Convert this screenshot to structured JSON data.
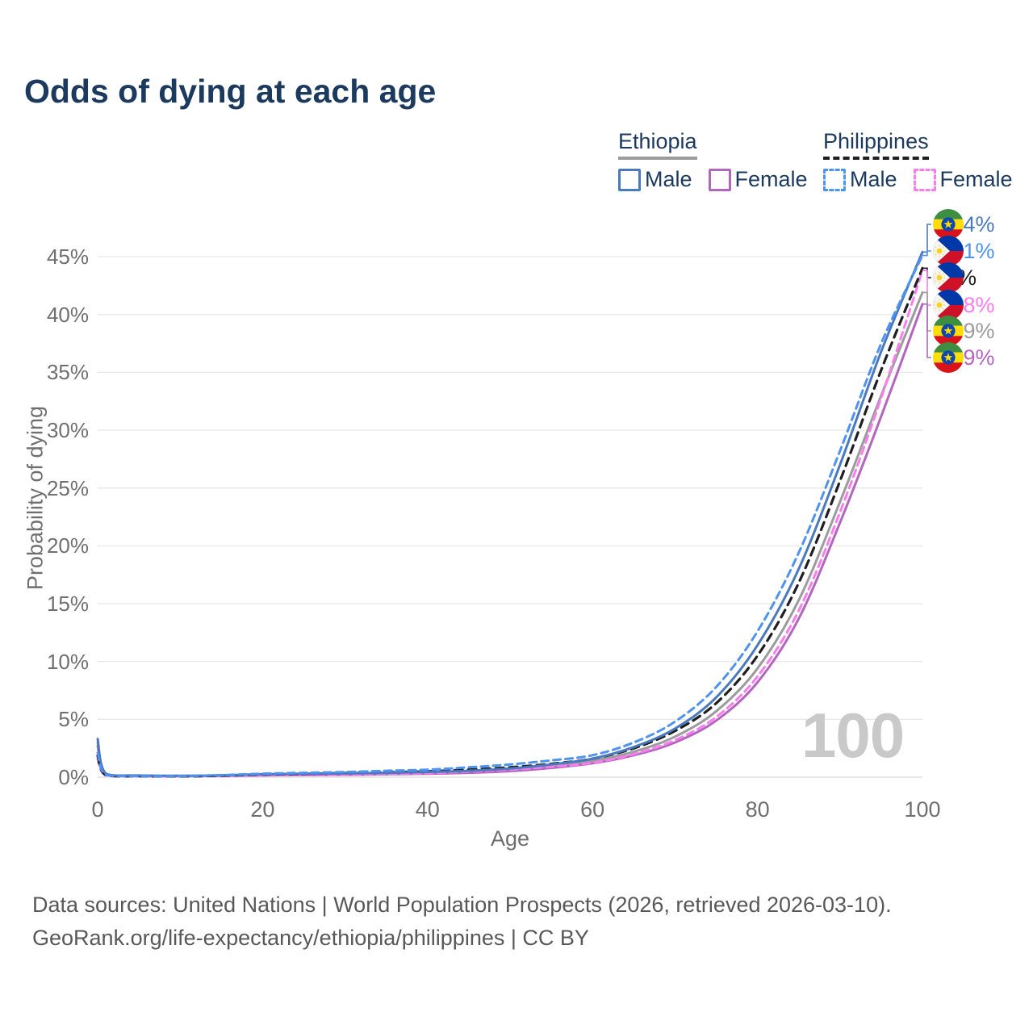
{
  "title": "Odds of dying at each age",
  "watermark_age": "100",
  "legend": {
    "groups": [
      {
        "name": "Ethiopia",
        "line_style": "solid",
        "underline_color": "#9c9c9c",
        "items": [
          {
            "label": "Male",
            "color": "#4a79bd"
          },
          {
            "label": "Female",
            "color": "#b366bd"
          }
        ]
      },
      {
        "name": "Philippines",
        "line_style": "dashed",
        "underline_color": "#1f1f1f",
        "items": [
          {
            "label": "Male",
            "color": "#4e93f1"
          },
          {
            "label": "Female",
            "color": "#fb7cee"
          }
        ]
      }
    ]
  },
  "footer": {
    "line1": "Data sources: United Nations | World Population Prospects (2026, retrieved 2026-03-10).",
    "line2": "GeoRank.org/life-expectancy/ethiopia/philippines | CC BY"
  },
  "chart_data": {
    "type": "line",
    "title": "Odds of dying at each age",
    "xlabel": "Age",
    "ylabel": "Probability of dying",
    "xlim": [
      0,
      100
    ],
    "ylim": [
      0,
      47
    ],
    "x_ticks": [
      0,
      20,
      40,
      60,
      80,
      100
    ],
    "y_ticks": [
      0,
      5,
      10,
      15,
      20,
      25,
      30,
      35,
      40,
      45
    ],
    "y_tick_suffix": "%",
    "grid": "horizontal",
    "legend_position": "top-right",
    "x": [
      0,
      1,
      5,
      10,
      15,
      20,
      25,
      30,
      35,
      40,
      45,
      50,
      55,
      60,
      65,
      70,
      75,
      80,
      85,
      90,
      95,
      100
    ],
    "series": [
      {
        "name": "Ethiopia Both sexes",
        "country": "Ethiopia",
        "sex": "Both",
        "style": "solid",
        "color": "#9c9c9c",
        "values": [
          3.0,
          0.28,
          0.14,
          0.11,
          0.14,
          0.2,
          0.23,
          0.26,
          0.31,
          0.37,
          0.46,
          0.62,
          0.95,
          1.4,
          2.2,
          3.5,
          5.7,
          9.4,
          15.3,
          23.8,
          33.0,
          41.9
        ],
        "end_label": "41.9%"
      },
      {
        "name": "Ethiopia Female",
        "country": "Ethiopia",
        "sex": "Female",
        "style": "solid",
        "color": "#b366bd",
        "values": [
          2.7,
          0.26,
          0.13,
          0.1,
          0.12,
          0.16,
          0.18,
          0.2,
          0.25,
          0.3,
          0.38,
          0.52,
          0.8,
          1.2,
          1.9,
          3.0,
          4.9,
          8.2,
          13.7,
          22.0,
          31.2,
          40.9
        ],
        "end_label": "40.9%"
      },
      {
        "name": "Philippines Female",
        "country": "Philippines",
        "sex": "Female",
        "style": "dashed",
        "color": "#fb7cee",
        "values": [
          1.6,
          0.16,
          0.08,
          0.07,
          0.09,
          0.15,
          0.18,
          0.22,
          0.28,
          0.35,
          0.48,
          0.65,
          0.9,
          1.25,
          2.0,
          3.2,
          5.2,
          8.7,
          14.4,
          22.9,
          32.8,
          43.8
        ],
        "end_label": "43.8%"
      },
      {
        "name": "Philippines Both sexes",
        "country": "Philippines",
        "sex": "Both",
        "style": "dashed",
        "color": "#1f1f1f",
        "values": [
          1.85,
          0.18,
          0.09,
          0.08,
          0.13,
          0.23,
          0.28,
          0.35,
          0.42,
          0.5,
          0.65,
          0.85,
          1.15,
          1.6,
          2.5,
          4.0,
          6.4,
          10.5,
          16.8,
          25.6,
          35.2,
          44.0
        ],
        "end_label": "44%"
      },
      {
        "name": "Ethiopia Male",
        "country": "Ethiopia",
        "sex": "Male",
        "style": "solid",
        "color": "#4a79bd",
        "values": [
          3.3,
          0.3,
          0.15,
          0.12,
          0.16,
          0.25,
          0.29,
          0.32,
          0.38,
          0.45,
          0.55,
          0.75,
          1.1,
          1.6,
          2.6,
          4.2,
          6.9,
          11.4,
          18.0,
          27.0,
          36.8,
          45.4
        ],
        "end_label": "45.4%"
      },
      {
        "name": "Philippines Male",
        "country": "Philippines",
        "sex": "Male",
        "style": "dashed",
        "color": "#4e93f1",
        "values": [
          2.1,
          0.2,
          0.1,
          0.1,
          0.18,
          0.3,
          0.38,
          0.45,
          0.55,
          0.65,
          0.85,
          1.1,
          1.45,
          1.9,
          3.0,
          4.8,
          7.8,
          12.6,
          19.4,
          28.2,
          37.5,
          45.1
        ],
        "end_label": "45.1%"
      }
    ]
  }
}
